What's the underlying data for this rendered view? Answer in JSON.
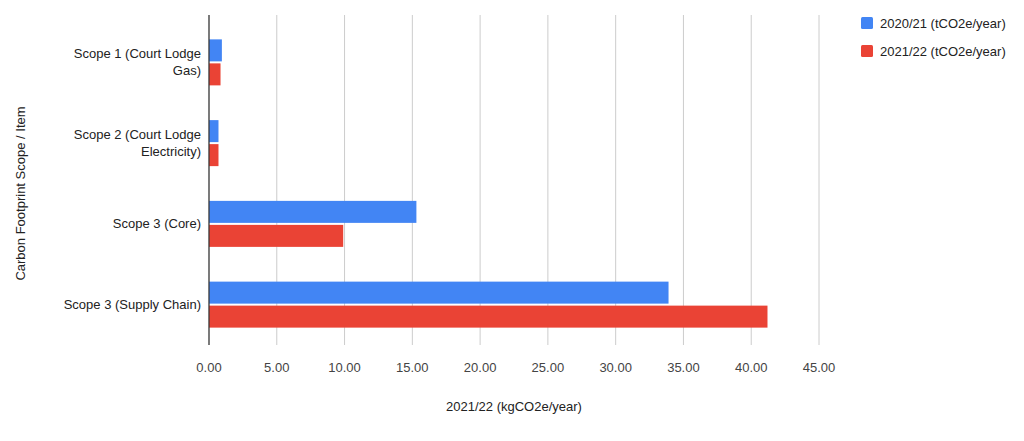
{
  "chart_data": {
    "type": "bar",
    "orientation": "horizontal",
    "categories": [
      "Scope 1 (Court Lodge Gas)",
      "Scope 2 (Court Lodge Electricity)",
      "Scope 3 (Core)",
      "Scope 3 (Supply Chain)"
    ],
    "series": [
      {
        "name": "2020/21 (tCO2e/year)",
        "color": "#4285f4",
        "values": [
          0.95,
          0.7,
          15.3,
          33.9
        ]
      },
      {
        "name": "2021/22 (tCO2e/year)",
        "color": "#ea4335",
        "values": [
          0.85,
          0.7,
          9.9,
          41.2
        ]
      }
    ],
    "x_label": "2021/22 (kgCO2e/year)",
    "y_label": "Carbon Footprint Scope / Item",
    "xlim": [
      0,
      45
    ],
    "xticks": [
      {
        "value": 0,
        "label": "0.00"
      },
      {
        "value": 5,
        "label": "5.00"
      },
      {
        "value": 10,
        "label": "10.00"
      },
      {
        "value": 15,
        "label": "15.00"
      },
      {
        "value": 20,
        "label": "20.00"
      },
      {
        "value": 25,
        "label": "25.00"
      },
      {
        "value": 30,
        "label": "30.00"
      },
      {
        "value": 35,
        "label": "35.00"
      },
      {
        "value": 40,
        "label": "40.00"
      },
      {
        "value": 45,
        "label": "45.00"
      }
    ],
    "grid": true,
    "legend": "top-right"
  }
}
